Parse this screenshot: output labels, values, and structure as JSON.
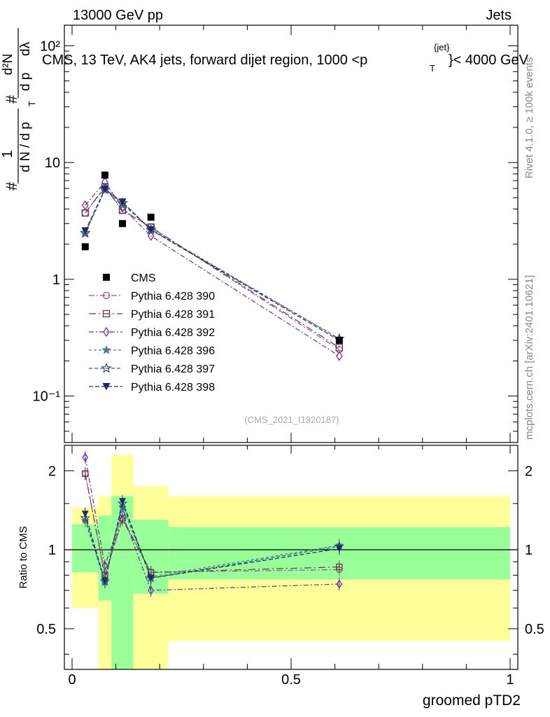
{
  "header": {
    "left": "13000 GeV pp",
    "right": "Jets"
  },
  "title_parts": {
    "a": "CMS, 13 TeV, AK4 jets, forward dijet region, 1000 <p",
    "sup": "{jet}",
    "sub": "T",
    "b": "}< 4000 GeV"
  },
  "side_labels": {
    "rivet": "Rivet 4.1.0, ≥ 100k events",
    "mcplots": "mcplots.cern.ch [arXiv:2401.10621]"
  },
  "watermark": "(CMS_2021_I1920187)",
  "ylabel_parts": {
    "hash1": "#",
    "frac1_num": "1",
    "frac1_den": "d N / d p",
    "sub_T": "T",
    "hash2": "#",
    "frac2_num": "d²N",
    "frac2_den": "d p",
    "d_lambda": "dλ"
  },
  "colors": {
    "data": "#000000",
    "p390": "#8a5c86",
    "p391": "#6b3448",
    "p392": "#6a3397",
    "p396": "#4e7b8c",
    "p397": "#3a5a80",
    "p398": "#1c2966",
    "band_inner": "#99ff99",
    "band_outer": "#ffff99"
  },
  "chart_data": [
    {
      "type": "line",
      "panel": "main",
      "yscale": "log",
      "xlim": [
        0,
        1
      ],
      "ylim": [
        0.04,
        150
      ],
      "ylabel": "# 1 / (d N / d p_T) # d²N / (d p_T dλ)",
      "ytick_labels": [
        "10⁻¹",
        "1",
        "10",
        "10²"
      ],
      "ytick_values": [
        0.1,
        1,
        10,
        100
      ],
      "legend_position": "center-left",
      "x": [
        0.03,
        0.075,
        0.115,
        0.18,
        0.61
      ],
      "data": {
        "name": "CMS",
        "marker": "filled-square",
        "values": [
          1.9,
          7.8,
          3.0,
          3.4,
          0.3
        ]
      },
      "series": [
        {
          "name": "Pythia 6.428 390",
          "marker": "open-circle",
          "color_key": "p390",
          "values": [
            3.7,
            6.1,
            3.9,
            2.8,
            0.25
          ]
        },
        {
          "name": "Pythia 6.428 391",
          "marker": "open-square",
          "color_key": "p391",
          "values": [
            3.7,
            6.2,
            3.9,
            2.8,
            0.26
          ]
        },
        {
          "name": "Pythia 6.428 392",
          "marker": "open-diamond",
          "color_key": "p392",
          "values": [
            4.3,
            6.8,
            4.1,
            2.35,
            0.22
          ]
        },
        {
          "name": "Pythia 6.428 396",
          "marker": "star-light",
          "color_key": "p396",
          "values": [
            2.45,
            5.8,
            4.4,
            2.7,
            0.31
          ]
        },
        {
          "name": "Pythia 6.428 397",
          "marker": "star",
          "color_key": "p397",
          "values": [
            2.5,
            5.9,
            4.5,
            2.65,
            0.31
          ]
        },
        {
          "name": "Pythia 6.428 398",
          "marker": "filled-triangle-down",
          "color_key": "p398",
          "values": [
            2.6,
            5.9,
            4.6,
            2.65,
            0.3
          ]
        }
      ]
    },
    {
      "type": "line",
      "panel": "ratio",
      "yscale": "log",
      "xlim": [
        0,
        1
      ],
      "ylim": [
        0.35,
        2.5
      ],
      "ylabel": "Ratio to CMS",
      "xlabel": "groomed pTD2",
      "ytick_labels": [
        "0.5",
        "1",
        "2"
      ],
      "ytick_values": [
        0.5,
        1,
        2
      ],
      "xtick_labels": [
        "0",
        "0.5",
        "1"
      ],
      "xtick_values": [
        0,
        0.5,
        1
      ],
      "reference_line": 1,
      "bands": [
        {
          "x0": 0.0,
          "x1": 0.06,
          "inner": [
            0.82,
            1.25
          ],
          "outer": [
            0.6,
            1.45
          ]
        },
        {
          "x0": 0.06,
          "x1": 0.09,
          "inner": [
            0.64,
            1.35
          ],
          "outer": [
            0.35,
            1.6
          ]
        },
        {
          "x0": 0.09,
          "x1": 0.14,
          "inner": [
            0.35,
            1.6
          ],
          "outer": [
            0.35,
            2.3
          ]
        },
        {
          "x0": 0.14,
          "x1": 0.22,
          "inner": [
            0.68,
            1.3
          ],
          "outer": [
            0.35,
            1.75
          ]
        },
        {
          "x0": 0.22,
          "x1": 1.0,
          "inner": [
            0.77,
            1.22
          ],
          "outer": [
            0.45,
            1.6
          ]
        }
      ],
      "x": [
        0.03,
        0.075,
        0.115,
        0.18,
        0.61
      ],
      "series": [
        {
          "name": "Pythia 6.428 390",
          "marker": "open-circle",
          "color_key": "p390",
          "values": [
            1.95,
            0.8,
            1.3,
            0.82,
            0.84
          ]
        },
        {
          "name": "Pythia 6.428 391",
          "marker": "open-square",
          "color_key": "p391",
          "values": [
            1.95,
            0.8,
            1.32,
            0.82,
            0.86
          ]
        },
        {
          "name": "Pythia 6.428 392",
          "marker": "open-diamond",
          "color_key": "p392",
          "values": [
            2.25,
            0.87,
            1.37,
            0.7,
            0.74
          ]
        },
        {
          "name": "Pythia 6.428 396",
          "marker": "star-light",
          "color_key": "p396",
          "values": [
            1.29,
            0.75,
            1.45,
            0.79,
            1.04
          ]
        },
        {
          "name": "Pythia 6.428 397",
          "marker": "star",
          "color_key": "p397",
          "values": [
            1.32,
            0.76,
            1.5,
            0.78,
            1.03
          ]
        },
        {
          "name": "Pythia 6.428 398",
          "marker": "filled-triangle-down",
          "color_key": "p398",
          "values": [
            1.37,
            0.76,
            1.53,
            0.78,
            1.01
          ]
        }
      ]
    }
  ]
}
